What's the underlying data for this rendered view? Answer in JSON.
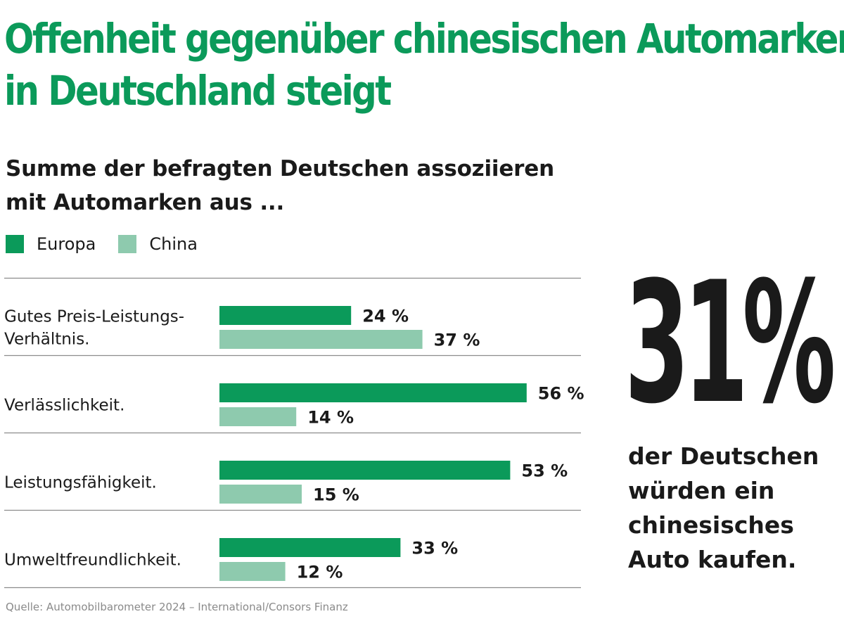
{
  "title_lines": [
    "Offenheit gegenüber chinesischen Automarken",
    "in Deutschland steigt"
  ],
  "subtitle_lines": [
    "Summe der befragten Deutschen assoziieren",
    "mit Automarken aus ..."
  ],
  "colors": {
    "europa": "#0b9a5a",
    "china": "#8ecaae",
    "title": "#0b9a5a",
    "rule": "#8c8c8c"
  },
  "chart_data": {
    "type": "bar",
    "orientation": "horizontal",
    "categories": [
      [
        "Gutes Preis-Leistungs-",
        "Verhältnis."
      ],
      [
        "Verlässlichkeit."
      ],
      [
        "Leistungsfähigkeit."
      ],
      [
        "Umweltfreundlichkeit."
      ]
    ],
    "series": [
      {
        "name": "Europa",
        "values": [
          24,
          56,
          53,
          33
        ],
        "labels": [
          "24 %",
          "56 %",
          "53 %",
          "33 %"
        ]
      },
      {
        "name": "China",
        "values": [
          37,
          14,
          15,
          12
        ],
        "labels": [
          "37 %",
          "14 %",
          "15 %",
          "12 %"
        ]
      }
    ],
    "xlim": [
      0,
      100
    ],
    "grid": false,
    "legend_position": "top-left"
  },
  "callout": {
    "value": "31%",
    "caption_lines": [
      "der Deutschen",
      "würden ein",
      "chinesisches",
      "Auto kaufen."
    ]
  },
  "source": "Quelle: Automobilbarometer 2024 – International/Consors Finanz"
}
